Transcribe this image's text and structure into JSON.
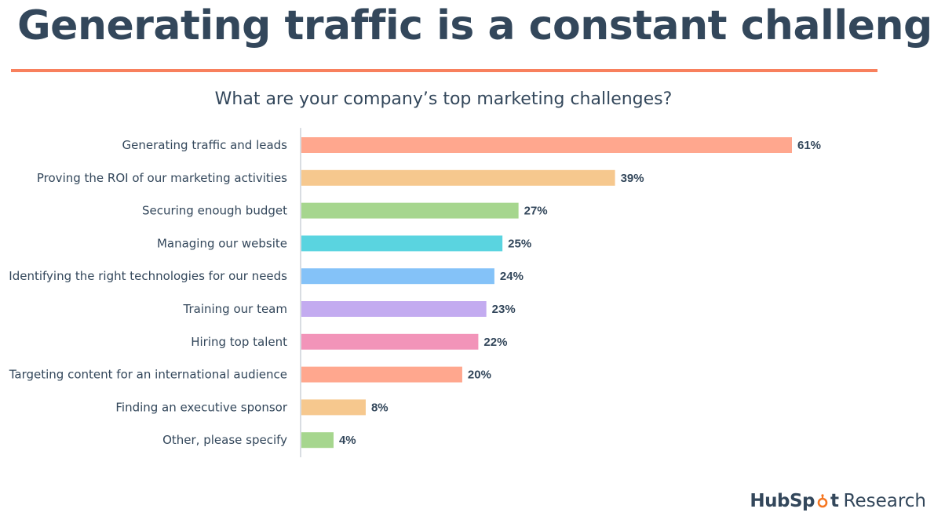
{
  "slide": {
    "title": "Generating traffic is a constant challenge"
  },
  "brand": {
    "hub_part": "HubSp",
    "ot_part": "t",
    "research": "Research",
    "accent_color": "#f57722"
  },
  "chart_data": {
    "type": "bar",
    "orientation": "horizontal",
    "title": "What are your company’s top marketing challenges?",
    "xlabel": "",
    "ylabel": "",
    "xlim": [
      0,
      61
    ],
    "grid": false,
    "categories": [
      "Generating traffic and leads",
      "Proving the ROI of our marketing activities",
      "Securing enough budget",
      "Managing our website",
      "Identifying the right technologies for our needs",
      "Training our team",
      "Hiring top talent",
      "Targeting content for an international audience",
      "Finding an executive sponsor",
      "Other, please specify"
    ],
    "values": [
      61,
      39,
      27,
      25,
      24,
      23,
      22,
      20,
      8,
      4
    ],
    "value_labels": [
      "61%",
      "39%",
      "27%",
      "25%",
      "24%",
      "23%",
      "22%",
      "20%",
      "8%",
      "4%"
    ],
    "colors": [
      "#ffa78e",
      "#f6c88e",
      "#a6d68e",
      "#5ad4e0",
      "#84c2f8",
      "#c3abf0",
      "#f294b9",
      "#ffa78e",
      "#f6c88e",
      "#a6d68e"
    ]
  }
}
